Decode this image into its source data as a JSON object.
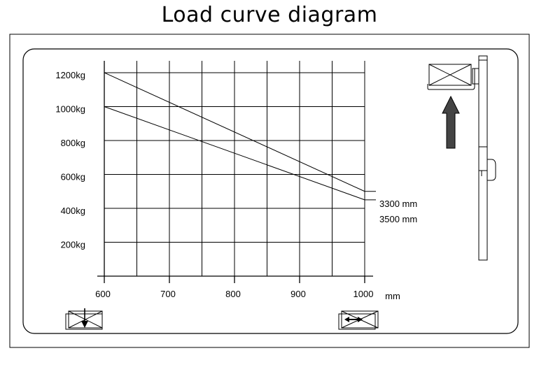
{
  "title": "Load curve diagram",
  "chart_data": {
    "type": "line",
    "title": "Load curve diagram",
    "xlabel": "mm",
    "ylabel": "",
    "x_ticks": [
      600,
      700,
      800,
      900,
      1000
    ],
    "y_ticks": [
      "200kg",
      "400kg",
      "600kg",
      "800kg",
      "1000kg",
      "1200kg"
    ],
    "y_tick_values": [
      200,
      400,
      600,
      800,
      1000,
      1200
    ],
    "xlim": [
      600,
      1000
    ],
    "ylim": [
      0,
      1270
    ],
    "grid": true,
    "series": [
      {
        "name": "3300 mm",
        "x": [
          600,
          1000
        ],
        "y": [
          1200,
          500
        ]
      },
      {
        "name": "3500 mm",
        "x": [
          600,
          1000
        ],
        "y": [
          1000,
          450
        ]
      }
    ]
  },
  "icons": {
    "load_lower": "pallet-lower-icon",
    "load_center": "load-center-icon",
    "lift_up": "lift-up-arrow-icon",
    "mast": "forklift-mast-icon",
    "pallet_top": "pallet-top-icon"
  },
  "colors": {
    "line": "#000000",
    "arrow_fill": "#444444",
    "background": "#ffffff"
  }
}
